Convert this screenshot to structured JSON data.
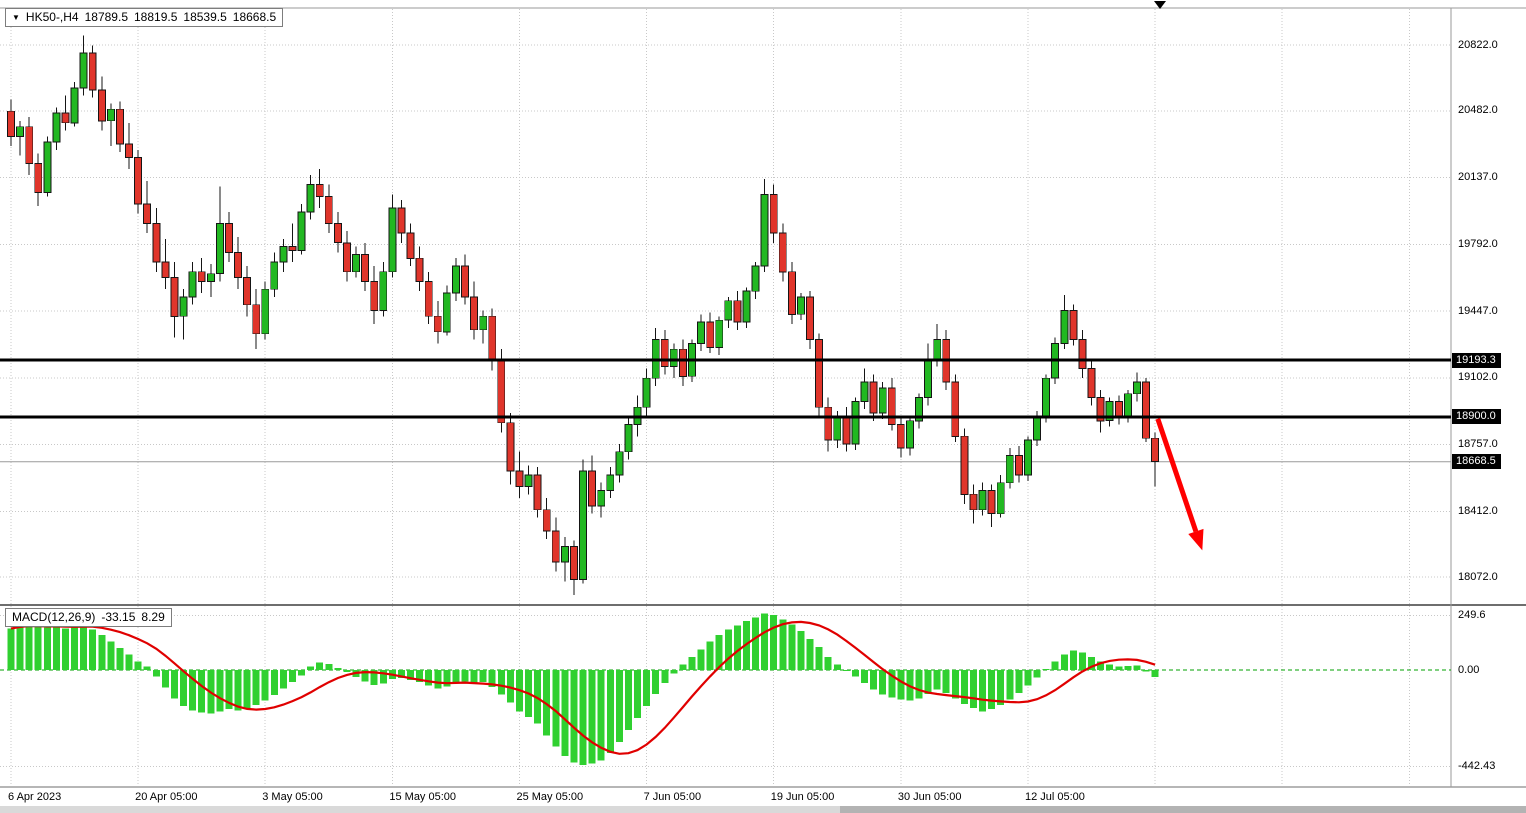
{
  "window": {
    "header": {
      "symbol": "HK50-,H4",
      "open": "18789.5",
      "high": "18819.5",
      "low": "18539.5",
      "close": "18668.5"
    }
  },
  "macd_panel": {
    "label": "MACD(12,26,9)",
    "macd_value": "-33.15",
    "signal_value": "8.29"
  },
  "colors": {
    "bull_candle": "#22b822",
    "bear_candle": "#e0352b",
    "candle_outline": "#151515",
    "macd_histogram": "#30d030",
    "macd_signal": "#e00000",
    "macd_zero_line": "#00a000",
    "level_line": "#000000",
    "grid": "#c8c8c8",
    "current_price_line": "#9a9a9a",
    "arrow": "#ff0000",
    "tag_background": "#000000",
    "tag_text": "#ffffff"
  },
  "chart_data": {
    "type": "candlestick",
    "title": "HK50-,H4",
    "symbol": "HK50-",
    "timeframe": "H4",
    "last_ohlc": {
      "open": 18789.5,
      "high": 18819.5,
      "low": 18539.5,
      "close": 18668.5
    },
    "price_axis_ticks": [
      "20822.0",
      "20482.0",
      "20137.0",
      "19792.0",
      "19447.0",
      "19102.0",
      "18757.0",
      "18412.0",
      "18072.0"
    ],
    "macd_axis_ticks": [
      "249.6",
      "0.00",
      "-442.43"
    ],
    "x_axis_labels": [
      {
        "label": "6 Apr 2023",
        "candle_index": 0
      },
      {
        "label": "20 Apr 05:00",
        "candle_index": 14
      },
      {
        "label": "3 May 05:00",
        "candle_index": 28
      },
      {
        "label": "15 May 05:00",
        "candle_index": 42
      },
      {
        "label": "25 May 05:00",
        "candle_index": 56
      },
      {
        "label": "7 Jun 05:00",
        "candle_index": 70
      },
      {
        "label": "19 Jun 05:00",
        "candle_index": 84
      },
      {
        "label": "30 Jun 05:00",
        "candle_index": 98
      },
      {
        "label": "12 Jul 05:00",
        "candle_index": 112
      }
    ],
    "levels": [
      {
        "price": 19193.3,
        "tag": "19193.3"
      },
      {
        "price": 18900.0,
        "tag": "18900.0"
      }
    ],
    "current_price_line": {
      "price": 18668.5,
      "tag": "18668.5"
    },
    "annotation_arrow": {
      "from": {
        "candle_index": 126.3,
        "price": 18890
      },
      "to": {
        "candle_index": 131.2,
        "price": 18210
      }
    },
    "candles": [
      [
        20480,
        20540,
        20300,
        20350
      ],
      [
        20350,
        20430,
        20250,
        20400
      ],
      [
        20400,
        20450,
        20150,
        20210
      ],
      [
        20210,
        20260,
        19990,
        20060
      ],
      [
        20060,
        20350,
        20040,
        20320
      ],
      [
        20320,
        20500,
        20280,
        20470
      ],
      [
        20470,
        20560,
        20380,
        20420
      ],
      [
        20420,
        20630,
        20400,
        20600
      ],
      [
        20600,
        20870,
        20560,
        20780
      ],
      [
        20780,
        20820,
        20550,
        20590
      ],
      [
        20590,
        20660,
        20380,
        20430
      ],
      [
        20430,
        20520,
        20300,
        20490
      ],
      [
        20490,
        20530,
        20270,
        20310
      ],
      [
        20310,
        20420,
        20180,
        20240
      ],
      [
        20240,
        20280,
        19950,
        20000
      ],
      [
        20000,
        20120,
        19850,
        19900
      ],
      [
        19900,
        19980,
        19650,
        19700
      ],
      [
        19700,
        19820,
        19560,
        19620
      ],
      [
        19620,
        19700,
        19310,
        19420
      ],
      [
        19420,
        19560,
        19300,
        19520
      ],
      [
        19520,
        19700,
        19480,
        19650
      ],
      [
        19650,
        19720,
        19540,
        19600
      ],
      [
        19600,
        19690,
        19520,
        19640
      ],
      [
        19640,
        20090,
        19600,
        19900
      ],
      [
        19900,
        19960,
        19700,
        19750
      ],
      [
        19750,
        19830,
        19560,
        19620
      ],
      [
        19620,
        19680,
        19420,
        19480
      ],
      [
        19480,
        19560,
        19250,
        19330
      ],
      [
        19330,
        19600,
        19300,
        19560
      ],
      [
        19560,
        19750,
        19520,
        19700
      ],
      [
        19700,
        19820,
        19650,
        19780
      ],
      [
        19780,
        19900,
        19700,
        19760
      ],
      [
        19760,
        20000,
        19740,
        19960
      ],
      [
        19960,
        20150,
        19920,
        20100
      ],
      [
        20100,
        20180,
        19980,
        20040
      ],
      [
        20040,
        20100,
        19850,
        19900
      ],
      [
        19900,
        19960,
        19750,
        19800
      ],
      [
        19800,
        19860,
        19600,
        19650
      ],
      [
        19650,
        19780,
        19620,
        19740
      ],
      [
        19740,
        19800,
        19550,
        19600
      ],
      [
        19600,
        19680,
        19380,
        19450
      ],
      [
        19450,
        19700,
        19420,
        19650
      ],
      [
        19650,
        20050,
        19620,
        19980
      ],
      [
        19980,
        20020,
        19800,
        19850
      ],
      [
        19850,
        19900,
        19680,
        19720
      ],
      [
        19720,
        19780,
        19550,
        19600
      ],
      [
        19600,
        19650,
        19380,
        19420
      ],
      [
        19420,
        19500,
        19280,
        19340
      ],
      [
        19340,
        19580,
        19320,
        19540
      ],
      [
        19540,
        19720,
        19500,
        19680
      ],
      [
        19680,
        19740,
        19480,
        19520
      ],
      [
        19520,
        19600,
        19300,
        19350
      ],
      [
        19350,
        19450,
        19280,
        19420
      ],
      [
        19420,
        19460,
        19140,
        19200
      ],
      [
        19200,
        19250,
        18820,
        18870
      ],
      [
        18870,
        18920,
        18550,
        18620
      ],
      [
        18620,
        18720,
        18480,
        18540
      ],
      [
        18540,
        18650,
        18500,
        18600
      ],
      [
        18600,
        18640,
        18380,
        18420
      ],
      [
        18420,
        18480,
        18270,
        18310
      ],
      [
        18310,
        18380,
        18100,
        18150
      ],
      [
        18150,
        18280,
        18050,
        18230
      ],
      [
        18230,
        18260,
        17980,
        18060
      ],
      [
        18060,
        18680,
        18040,
        18620
      ],
      [
        18620,
        18700,
        18400,
        18440
      ],
      [
        18440,
        18560,
        18380,
        18520
      ],
      [
        18520,
        18640,
        18480,
        18600
      ],
      [
        18600,
        18760,
        18560,
        18720
      ],
      [
        18720,
        18900,
        18680,
        18860
      ],
      [
        18860,
        19010,
        18800,
        18950
      ],
      [
        18950,
        19150,
        18900,
        19100
      ],
      [
        19100,
        19360,
        19060,
        19300
      ],
      [
        19300,
        19350,
        19120,
        19160
      ],
      [
        19160,
        19280,
        19100,
        19250
      ],
      [
        19250,
        19300,
        19060,
        19110
      ],
      [
        19110,
        19300,
        19080,
        19280
      ],
      [
        19280,
        19430,
        19240,
        19390
      ],
      [
        19390,
        19440,
        19230,
        19260
      ],
      [
        19260,
        19420,
        19220,
        19400
      ],
      [
        19400,
        19520,
        19360,
        19500
      ],
      [
        19500,
        19550,
        19350,
        19390
      ],
      [
        19390,
        19570,
        19360,
        19550
      ],
      [
        19550,
        19700,
        19510,
        19680
      ],
      [
        19680,
        20130,
        19650,
        20050
      ],
      [
        20050,
        20100,
        19800,
        19850
      ],
      [
        19850,
        19900,
        19600,
        19650
      ],
      [
        19650,
        19700,
        19380,
        19430
      ],
      [
        19430,
        19540,
        19400,
        19520
      ],
      [
        19520,
        19550,
        19250,
        19300
      ],
      [
        19300,
        19330,
        18900,
        18950
      ],
      [
        18950,
        19000,
        18720,
        18780
      ],
      [
        18780,
        18930,
        18740,
        18900
      ],
      [
        18900,
        18950,
        18720,
        18760
      ],
      [
        18760,
        19000,
        18730,
        18980
      ],
      [
        18980,
        19150,
        18940,
        19080
      ],
      [
        19080,
        19120,
        18880,
        18920
      ],
      [
        18920,
        19080,
        18890,
        19050
      ],
      [
        19050,
        19100,
        18830,
        18860
      ],
      [
        18860,
        18900,
        18690,
        18740
      ],
      [
        18740,
        18900,
        18700,
        18880
      ],
      [
        18880,
        19020,
        18840,
        19000
      ],
      [
        19000,
        19280,
        18960,
        19200
      ],
      [
        19200,
        19380,
        19160,
        19300
      ],
      [
        19300,
        19350,
        19040,
        19080
      ],
      [
        19080,
        19120,
        18770,
        18800
      ],
      [
        18800,
        18840,
        18450,
        18500
      ],
      [
        18500,
        18550,
        18350,
        18420
      ],
      [
        18420,
        18560,
        18390,
        18520
      ],
      [
        18520,
        18550,
        18330,
        18400
      ],
      [
        18400,
        18600,
        18380,
        18560
      ],
      [
        18560,
        18740,
        18530,
        18700
      ],
      [
        18700,
        18750,
        18560,
        18600
      ],
      [
        18600,
        18800,
        18570,
        18780
      ],
      [
        18780,
        18930,
        18750,
        18900
      ],
      [
        18900,
        19120,
        18870,
        19100
      ],
      [
        19100,
        19310,
        19070,
        19280
      ],
      [
        19280,
        19530,
        19250,
        19450
      ],
      [
        19450,
        19480,
        19270,
        19300
      ],
      [
        19300,
        19350,
        19100,
        19150
      ],
      [
        19150,
        19200,
        18960,
        19000
      ],
      [
        19000,
        19040,
        18820,
        18880
      ],
      [
        18880,
        19000,
        18850,
        18980
      ],
      [
        18980,
        19010,
        18860,
        18900
      ],
      [
        18900,
        19040,
        18870,
        19020
      ],
      [
        19020,
        19130,
        18980,
        19080
      ],
      [
        19080,
        19100,
        18770,
        18790
      ],
      [
        18789.5,
        18819.5,
        18539.5,
        18668.5
      ]
    ],
    "macd": {
      "params": "12,26,9",
      "last_macd": -33.15,
      "last_signal": 8.29,
      "signal_period": 9,
      "histogram": [
        190,
        205,
        210,
        200,
        195,
        200,
        190,
        196,
        206,
        186,
        160,
        130,
        100,
        70,
        40,
        15,
        -30,
        -80,
        -130,
        -165,
        -185,
        -195,
        -200,
        -190,
        -180,
        -185,
        -175,
        -160,
        -140,
        -115,
        -85,
        -55,
        -25,
        15,
        35,
        28,
        10,
        -10,
        -32,
        -52,
        -68,
        -62,
        -42,
        -36,
        -46,
        -56,
        -72,
        -86,
        -76,
        -56,
        -52,
        -62,
        -56,
        -78,
        -112,
        -150,
        -190,
        -215,
        -245,
        -300,
        -350,
        -395,
        -425,
        -435,
        -430,
        -415,
        -380,
        -330,
        -275,
        -220,
        -165,
        -110,
        -60,
        -15,
        25,
        60,
        95,
        130,
        160,
        185,
        205,
        225,
        240,
        260,
        252,
        232,
        208,
        178,
        142,
        105,
        60,
        25,
        -5,
        -30,
        -60,
        -90,
        -112,
        -125,
        -135,
        -140,
        -130,
        -110,
        -90,
        -105,
        -130,
        -155,
        -175,
        -190,
        -180,
        -160,
        -135,
        -105,
        -70,
        -35,
        5,
        40,
        70,
        90,
        80,
        60,
        40,
        25,
        15,
        18,
        20,
        -8,
        -33.15
      ]
    }
  }
}
